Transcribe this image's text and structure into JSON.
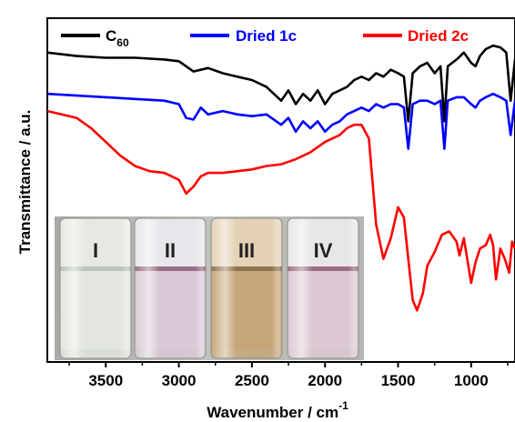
{
  "chart_data": {
    "type": "line",
    "xlabel": "Wavenumber / cm",
    "xlabel_superscript": "-1",
    "ylabel": "Transmittance / a.u.",
    "xlim": [
      3900,
      700
    ],
    "x_reversed": true,
    "x_ticks": [
      3500,
      3000,
      2500,
      2000,
      1500,
      1000
    ],
    "x_tick_labels": [
      "3500",
      "3000",
      "2500",
      "2000",
      "1500",
      "1000"
    ],
    "y_ticks_shown": false,
    "ylim": [
      0,
      100
    ],
    "grid": false,
    "legend": {
      "placement": "top",
      "entries": [
        {
          "series": "C60",
          "label": "C",
          "subscript": "60"
        },
        {
          "series": "Dried 1c",
          "label": "Dried 1c",
          "subscript": ""
        },
        {
          "series": "Dried 2c",
          "label": "Dried 2c",
          "subscript": ""
        }
      ]
    },
    "series": [
      {
        "name": "C60",
        "color": "#000000",
        "points": [
          [
            3900,
            90
          ],
          [
            3700,
            89
          ],
          [
            3500,
            88.5
          ],
          [
            3300,
            88.5
          ],
          [
            3100,
            88
          ],
          [
            3000,
            87.5
          ],
          [
            2950,
            86
          ],
          [
            2900,
            84.5
          ],
          [
            2800,
            85.5
          ],
          [
            2700,
            84
          ],
          [
            2600,
            83
          ],
          [
            2500,
            82
          ],
          [
            2400,
            80
          ],
          [
            2300,
            76
          ],
          [
            2250,
            79
          ],
          [
            2200,
            75
          ],
          [
            2150,
            78
          ],
          [
            2100,
            76
          ],
          [
            2050,
            79
          ],
          [
            2000,
            75
          ],
          [
            1950,
            78
          ],
          [
            1900,
            79
          ],
          [
            1850,
            80
          ],
          [
            1800,
            82
          ],
          [
            1750,
            83
          ],
          [
            1700,
            82
          ],
          [
            1650,
            84
          ],
          [
            1600,
            83
          ],
          [
            1550,
            85
          ],
          [
            1500,
            84
          ],
          [
            1460,
            83
          ],
          [
            1430,
            70
          ],
          [
            1400,
            84
          ],
          [
            1350,
            86
          ],
          [
            1300,
            87
          ],
          [
            1250,
            84
          ],
          [
            1210,
            86
          ],
          [
            1183,
            70
          ],
          [
            1160,
            86
          ],
          [
            1100,
            88
          ],
          [
            1050,
            90
          ],
          [
            1000,
            87
          ],
          [
            970,
            86
          ],
          [
            940,
            89
          ],
          [
            900,
            91
          ],
          [
            850,
            92
          ],
          [
            800,
            91.5
          ],
          [
            760,
            90
          ],
          [
            730,
            76
          ],
          [
            700,
            88
          ]
        ]
      },
      {
        "name": "Dried 1c",
        "color": "#0000ff",
        "points": [
          [
            3900,
            78
          ],
          [
            3700,
            77.5
          ],
          [
            3500,
            77
          ],
          [
            3300,
            76.5
          ],
          [
            3100,
            76
          ],
          [
            3000,
            75
          ],
          [
            2950,
            71
          ],
          [
            2900,
            70.5
          ],
          [
            2850,
            74
          ],
          [
            2800,
            72
          ],
          [
            2700,
            73
          ],
          [
            2600,
            72
          ],
          [
            2500,
            71.5
          ],
          [
            2400,
            72
          ],
          [
            2300,
            69
          ],
          [
            2250,
            71
          ],
          [
            2200,
            67
          ],
          [
            2150,
            70
          ],
          [
            2100,
            68
          ],
          [
            2050,
            70
          ],
          [
            2000,
            67
          ],
          [
            1950,
            69
          ],
          [
            1900,
            70
          ],
          [
            1850,
            72
          ],
          [
            1800,
            73
          ],
          [
            1750,
            74
          ],
          [
            1700,
            73
          ],
          [
            1650,
            75
          ],
          [
            1600,
            74
          ],
          [
            1550,
            75
          ],
          [
            1500,
            75
          ],
          [
            1460,
            74
          ],
          [
            1430,
            62
          ],
          [
            1400,
            75
          ],
          [
            1350,
            76
          ],
          [
            1300,
            76
          ],
          [
            1250,
            75
          ],
          [
            1210,
            76
          ],
          [
            1183,
            62
          ],
          [
            1160,
            76
          ],
          [
            1100,
            77
          ],
          [
            1050,
            77
          ],
          [
            1000,
            75
          ],
          [
            970,
            74
          ],
          [
            940,
            76
          ],
          [
            900,
            77
          ],
          [
            850,
            78
          ],
          [
            800,
            77
          ],
          [
            760,
            76
          ],
          [
            730,
            66
          ],
          [
            700,
            76
          ]
        ]
      },
      {
        "name": "Dried 2c",
        "color": "#ff0000",
        "points": [
          [
            3900,
            73
          ],
          [
            3700,
            71
          ],
          [
            3600,
            68
          ],
          [
            3500,
            64
          ],
          [
            3400,
            60
          ],
          [
            3300,
            57
          ],
          [
            3200,
            55.5
          ],
          [
            3100,
            55
          ],
          [
            3000,
            53
          ],
          [
            2950,
            49
          ],
          [
            2900,
            51
          ],
          [
            2850,
            54
          ],
          [
            2800,
            55
          ],
          [
            2700,
            55
          ],
          [
            2600,
            55.5
          ],
          [
            2500,
            56
          ],
          [
            2400,
            57
          ],
          [
            2300,
            57.5
          ],
          [
            2200,
            59
          ],
          [
            2100,
            61
          ],
          [
            2000,
            64
          ],
          [
            1950,
            65
          ],
          [
            1900,
            66
          ],
          [
            1850,
            68
          ],
          [
            1800,
            69
          ],
          [
            1750,
            69
          ],
          [
            1700,
            65
          ],
          [
            1650,
            40
          ],
          [
            1600,
            30
          ],
          [
            1550,
            36
          ],
          [
            1500,
            45
          ],
          [
            1460,
            42
          ],
          [
            1430,
            30
          ],
          [
            1400,
            18
          ],
          [
            1370,
            15
          ],
          [
            1330,
            20
          ],
          [
            1300,
            28
          ],
          [
            1250,
            32
          ],
          [
            1200,
            37
          ],
          [
            1150,
            38
          ],
          [
            1100,
            35
          ],
          [
            1080,
            31
          ],
          [
            1050,
            36
          ],
          [
            1000,
            23
          ],
          [
            970,
            29
          ],
          [
            940,
            33
          ],
          [
            900,
            34
          ],
          [
            870,
            37
          ],
          [
            850,
            34
          ],
          [
            830,
            24
          ],
          [
            800,
            33
          ],
          [
            770,
            30
          ],
          [
            740,
            26
          ],
          [
            720,
            35
          ],
          [
            700,
            33
          ]
        ]
      }
    ],
    "inset": {
      "description_type": "photo",
      "vial_labels": [
        "I",
        "II",
        "III",
        "IV"
      ],
      "vial_colors": {
        "I": {
          "top": "#e6e9e3",
          "liquid": "#e2e6de",
          "line": "#bcc3b8"
        },
        "II": {
          "top": "#e8e6ea",
          "liquid": "#d9c9d6",
          "line": "#9a6d86"
        },
        "III": {
          "top": "#e3d2b6",
          "liquid": "#c6a678",
          "line": "#8f7350"
        },
        "IV": {
          "top": "#e9e6e8",
          "liquid": "#dcc8d2",
          "line": "#9b6e84"
        }
      },
      "background": "#b9b9b6"
    }
  }
}
